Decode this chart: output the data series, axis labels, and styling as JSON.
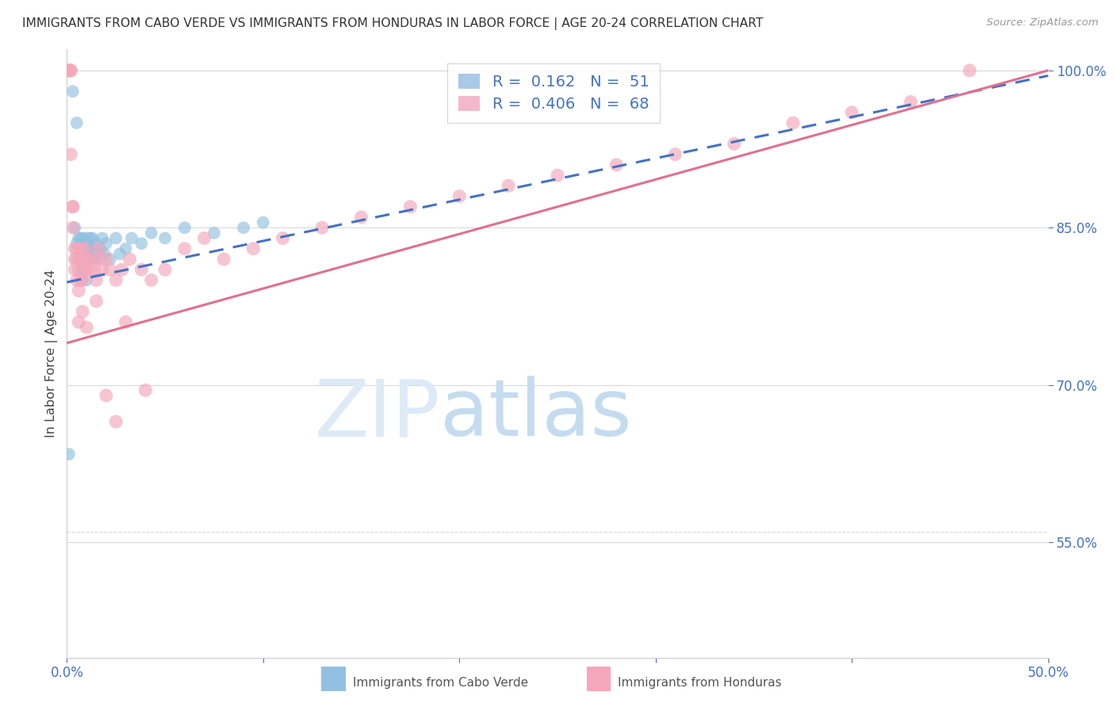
{
  "title": "IMMIGRANTS FROM CABO VERDE VS IMMIGRANTS FROM HONDURAS IN LABOR FORCE | AGE 20-24 CORRELATION CHART",
  "source": "Source: ZipAtlas.com",
  "ylabel": "In Labor Force | Age 20-24",
  "x_min": 0.0,
  "x_max": 0.5,
  "y_min": 0.44,
  "y_max": 1.02,
  "y_ticks": [
    0.55,
    0.7,
    0.85,
    1.0
  ],
  "y_tick_labels": [
    "55.0%",
    "70.0%",
    "85.0%",
    "100.0%"
  ],
  "x_ticks": [
    0.0,
    0.1,
    0.2,
    0.3,
    0.4,
    0.5
  ],
  "x_tick_labels": [
    "0.0%",
    "",
    "",
    "",
    "",
    "50.0%"
  ],
  "cabo_verde_color": "#92c0e0",
  "honduras_color": "#f4a7bb",
  "cabo_verde_line_color": "#4472c4",
  "honduras_line_color": "#e07090",
  "cabo_verde_R": 0.162,
  "cabo_verde_N": 51,
  "honduras_R": 0.406,
  "honduras_N": 68,
  "grid_color": "#d8d8d8",
  "cv_x": [
    0.001,
    0.003,
    0.004,
    0.005,
    0.005,
    0.006,
    0.006,
    0.006,
    0.007,
    0.007,
    0.007,
    0.007,
    0.008,
    0.008,
    0.008,
    0.008,
    0.008,
    0.009,
    0.009,
    0.009,
    0.01,
    0.01,
    0.01,
    0.01,
    0.011,
    0.011,
    0.011,
    0.012,
    0.012,
    0.013,
    0.013,
    0.014,
    0.015,
    0.015,
    0.016,
    0.017,
    0.018,
    0.019,
    0.02,
    0.022,
    0.025,
    0.027,
    0.03,
    0.033,
    0.038,
    0.043,
    0.05,
    0.06,
    0.075,
    0.09,
    0.1
  ],
  "cv_y": [
    0.634,
    0.98,
    0.85,
    0.835,
    0.95,
    0.82,
    0.84,
    0.82,
    0.83,
    0.825,
    0.84,
    0.82,
    0.82,
    0.835,
    0.81,
    0.83,
    0.84,
    0.82,
    0.835,
    0.82,
    0.8,
    0.82,
    0.83,
    0.84,
    0.83,
    0.825,
    0.82,
    0.83,
    0.84,
    0.825,
    0.84,
    0.82,
    0.835,
    0.82,
    0.825,
    0.83,
    0.84,
    0.825,
    0.835,
    0.82,
    0.84,
    0.825,
    0.83,
    0.84,
    0.835,
    0.845,
    0.84,
    0.85,
    0.845,
    0.85,
    0.855
  ],
  "hn_x": [
    0.001,
    0.001,
    0.002,
    0.002,
    0.002,
    0.003,
    0.003,
    0.003,
    0.004,
    0.004,
    0.004,
    0.005,
    0.005,
    0.005,
    0.006,
    0.006,
    0.007,
    0.007,
    0.007,
    0.008,
    0.008,
    0.008,
    0.009,
    0.009,
    0.01,
    0.01,
    0.011,
    0.012,
    0.013,
    0.014,
    0.015,
    0.016,
    0.017,
    0.018,
    0.02,
    0.022,
    0.025,
    0.028,
    0.032,
    0.038,
    0.043,
    0.05,
    0.06,
    0.07,
    0.08,
    0.095,
    0.11,
    0.13,
    0.15,
    0.175,
    0.2,
    0.225,
    0.25,
    0.28,
    0.31,
    0.34,
    0.37,
    0.4,
    0.43,
    0.46,
    0.04,
    0.02,
    0.025,
    0.03,
    0.015,
    0.01,
    0.008,
    0.006
  ],
  "hn_y": [
    1.0,
    1.0,
    1.0,
    1.0,
    0.92,
    0.87,
    0.87,
    0.85,
    0.82,
    0.81,
    0.83,
    0.82,
    0.8,
    0.83,
    0.81,
    0.79,
    0.83,
    0.82,
    0.8,
    0.82,
    0.81,
    0.8,
    0.82,
    0.83,
    0.82,
    0.81,
    0.82,
    0.81,
    0.82,
    0.81,
    0.8,
    0.83,
    0.82,
    0.81,
    0.82,
    0.81,
    0.8,
    0.81,
    0.82,
    0.81,
    0.8,
    0.81,
    0.83,
    0.84,
    0.82,
    0.83,
    0.84,
    0.85,
    0.86,
    0.87,
    0.88,
    0.89,
    0.9,
    0.91,
    0.92,
    0.93,
    0.95,
    0.96,
    0.97,
    1.0,
    0.695,
    0.69,
    0.665,
    0.76,
    0.78,
    0.755,
    0.77,
    0.76
  ]
}
